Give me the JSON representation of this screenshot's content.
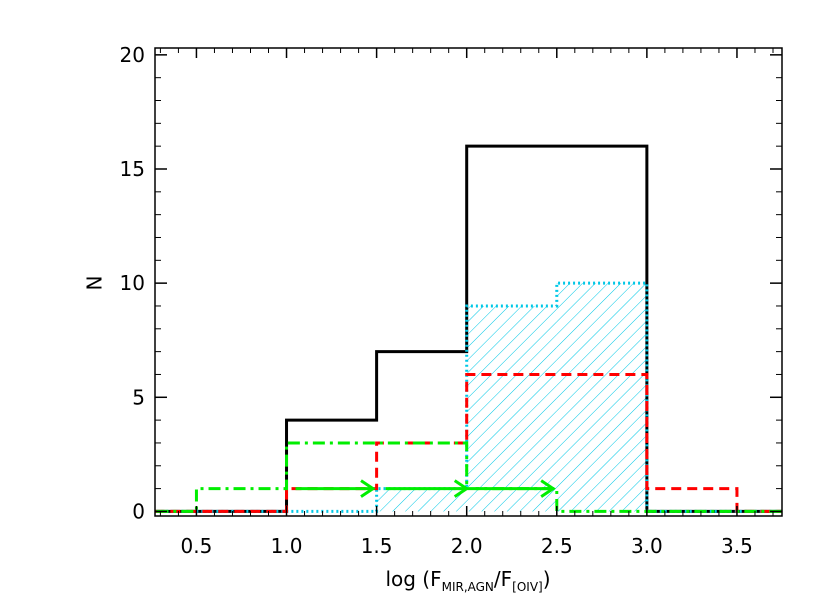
{
  "chart_data": {
    "type": "histogram",
    "title": "",
    "xlabel": {
      "prefix": "log  (F",
      "sub1": "MIR,AGN",
      "mid": "/F",
      "sub2": "[OIV]",
      "suffix": ")"
    },
    "ylabel": "N",
    "xlim": [
      0.27,
      3.75
    ],
    "ylim": [
      -0.2,
      20.3
    ],
    "xticks": [
      0.5,
      1.0,
      1.5,
      2.0,
      2.5,
      3.0,
      3.5
    ],
    "xtick_labels": [
      "0.5",
      "1.0",
      "1.5",
      "2.0",
      "2.5",
      "3.0",
      "3.5"
    ],
    "yticks": [
      0,
      5,
      10,
      15,
      20
    ],
    "ytick_labels": [
      "0",
      "5",
      "10",
      "15",
      "20"
    ],
    "bin_edges": [
      0.0,
      0.5,
      1.0,
      1.5,
      2.0,
      2.5,
      3.0,
      3.5,
      4.0
    ],
    "series": [
      {
        "style": "solid",
        "color": "#000000",
        "values": [
          0,
          0,
          4,
          7,
          16,
          16,
          0,
          0
        ]
      },
      {
        "style": "hatched-dotted",
        "color": "#00c8e6",
        "values": [
          0,
          0,
          0,
          1,
          9,
          10,
          0,
          0
        ]
      },
      {
        "style": "dashed",
        "color": "#ff0000",
        "values": [
          0,
          0,
          1,
          3,
          6,
          6,
          1,
          0
        ]
      },
      {
        "style": "dash-dot",
        "color": "#00ee00",
        "values": [
          0,
          1,
          3,
          3,
          1,
          0,
          0,
          0
        ]
      }
    ],
    "arrows": {
      "color": "#00ee00",
      "y": 1,
      "segments": [
        [
          1.05,
          1.48
        ],
        [
          1.55,
          2.0
        ],
        [
          2.05,
          2.48
        ]
      ]
    },
    "grid": false,
    "legend": "none"
  }
}
